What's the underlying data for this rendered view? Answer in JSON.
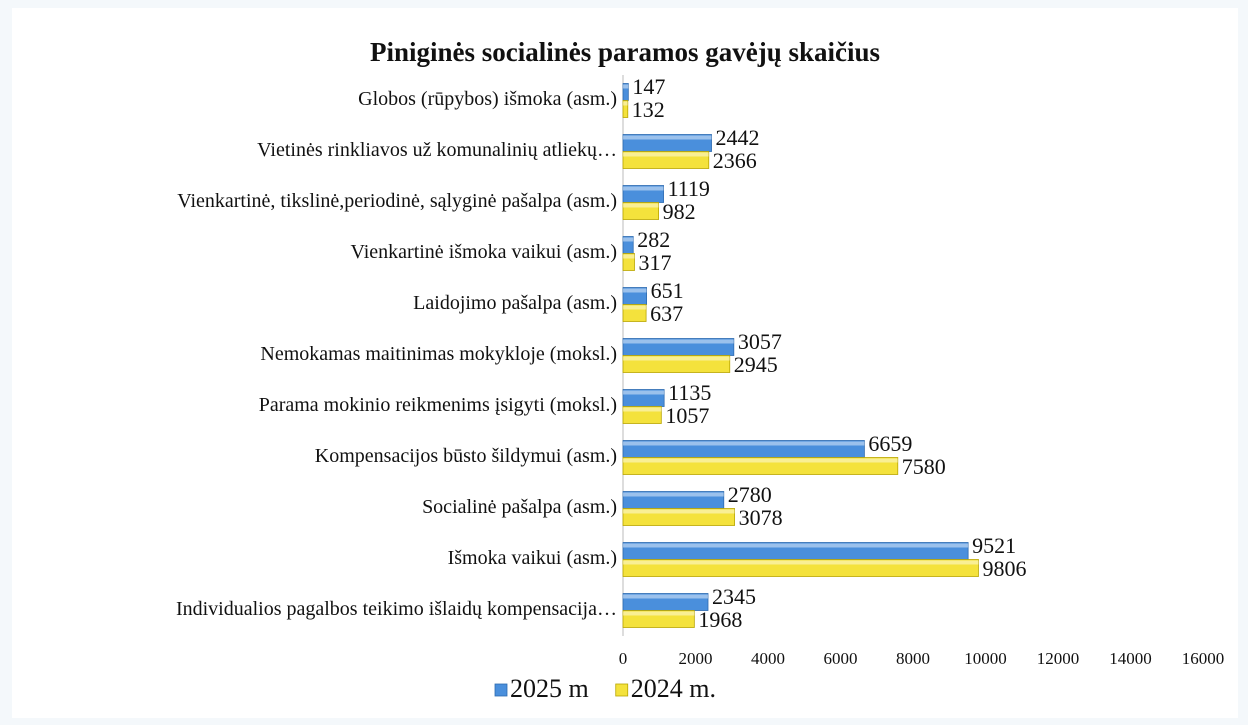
{
  "chart_data": {
    "type": "bar",
    "orientation": "horizontal",
    "title": "Piniginės socialinės paramos gavėjų skaičius",
    "categories": [
      "Globos (rūpybos) išmoka (asm.)",
      "Vietinės rinkliavos už komunalinių atliekų…",
      "Vienkartinė, tikslinė,periodinė, sąlyginė pašalpa (asm.)",
      "Vienkartinė išmoka vaikui (asm.)",
      "Laidojimo pašalpa (asm.)",
      "Nemokamas maitinimas mokykloje (moksl.)",
      "Parama mokinio reikmenims įsigyti (moksl.)",
      "Kompensacijos būsto šildymui (asm.)",
      "Socialinė pašalpa  (asm.)",
      "Išmoka vaikui  (asm.)",
      "Individualios pagalbos teikimo išlaidų kompensacija…"
    ],
    "series": [
      {
        "name": "2025 m",
        "color": "#4a8fdc",
        "values": [
          147,
          2442,
          1119,
          282,
          651,
          3057,
          1135,
          6659,
          2780,
          9521,
          2345
        ]
      },
      {
        "name": "2024 m.",
        "color": "#f4e23c",
        "values": [
          132,
          2366,
          982,
          317,
          637,
          2945,
          1057,
          7580,
          3078,
          9806,
          1968
        ]
      }
    ],
    "xlim": [
      0,
      16000
    ],
    "xticks": [
      0,
      2000,
      4000,
      6000,
      8000,
      10000,
      12000,
      14000,
      16000
    ],
    "legend": "bottom"
  }
}
